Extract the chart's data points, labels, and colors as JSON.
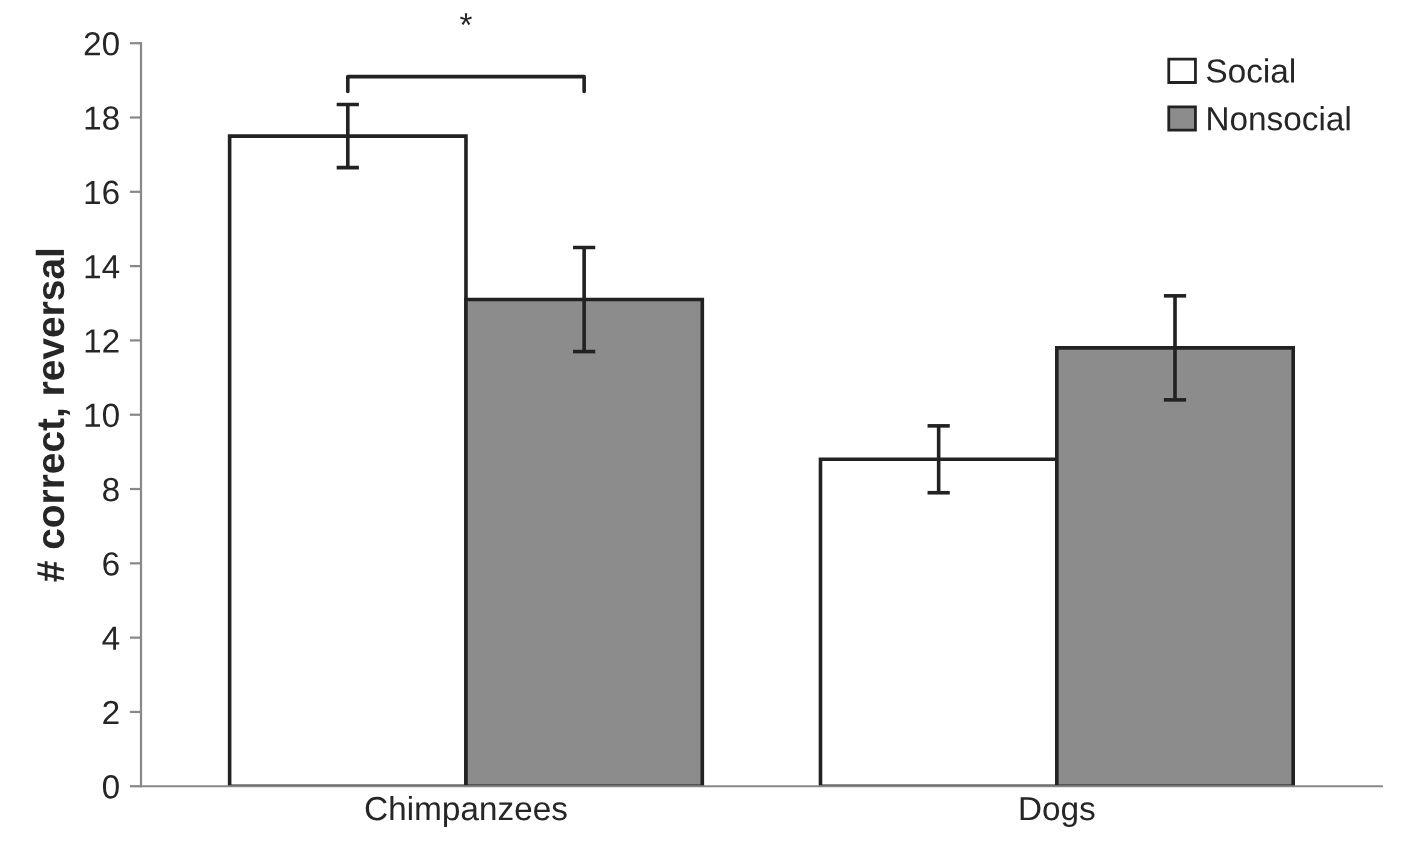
{
  "chart_data": {
    "type": "bar",
    "ylabel": "# correct, reversal",
    "categories": [
      "Chimpanzees",
      "Dogs"
    ],
    "series": [
      {
        "name": "Social",
        "color": "#ffffff",
        "values": [
          17.5,
          8.8
        ],
        "errors": [
          0.85,
          0.9
        ]
      },
      {
        "name": "Nonsocial",
        "color": "#8c8c8c",
        "values": [
          13.1,
          11.8
        ],
        "errors": [
          1.4,
          1.4
        ]
      }
    ],
    "ylim": [
      0,
      20
    ],
    "yticks": [
      0,
      2,
      4,
      6,
      8,
      10,
      12,
      14,
      16,
      18,
      20
    ],
    "grid": false,
    "legend": "top right",
    "annotations": [
      "*"
    ]
  }
}
